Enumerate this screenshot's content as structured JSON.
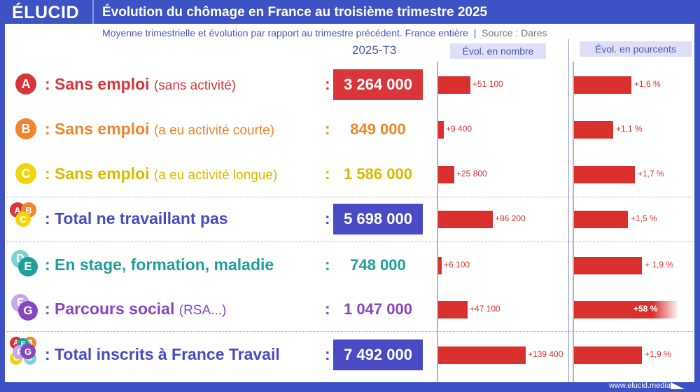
{
  "header": {
    "logo": "ÉLUCID",
    "title": "Évolution du chômage en France au troisième trimestre 2025"
  },
  "subtitle": {
    "text": "Moyenne trimestrielle et évolution par rapport au trimestre précédent. France entière",
    "source": "Source : Dares"
  },
  "columns": {
    "period": "2025-T3",
    "evol_number": "Évol. en nombre",
    "evol_percent": "Évol. en pourcents"
  },
  "colors": {
    "frame": "#3d52c4",
    "bar": "#d9302e"
  },
  "rows": [
    {
      "badges": [
        {
          "letter": "A",
          "color": "#d9363a"
        }
      ],
      "label": ": Sans emploi",
      "sub": "(sans activité)",
      "color": "#d9363a",
      "value": "3 264 000",
      "boxed": true,
      "evol_number": 51100,
      "evol_number_label": "+51 100",
      "evol_percent": 1.6,
      "evol_percent_label": "+1,6 %"
    },
    {
      "badges": [
        {
          "letter": "B",
          "color": "#f0852b"
        }
      ],
      "label": ": Sans emploi",
      "sub": "(a eu activité courte)",
      "color": "#f0852b",
      "value": "849 000",
      "boxed": false,
      "evol_number": 9400,
      "evol_number_label": "+9 400",
      "evol_percent": 1.1,
      "evol_percent_label": "+1,1 %"
    },
    {
      "badges": [
        {
          "letter": "C",
          "color": "#f2d40e"
        }
      ],
      "label": ": Sans emploi",
      "sub": "(a eu activité longue)",
      "color": "#d8bb00",
      "value": "1 586 000",
      "boxed": false,
      "evol_number": 25800,
      "evol_number_label": "+25 800",
      "evol_percent": 1.7,
      "evol_percent_label": "+1,7 %"
    },
    {
      "badges": [
        {
          "letter": "A",
          "color": "#d9363a"
        },
        {
          "letter": "B",
          "color": "#f0852b"
        },
        {
          "letter": "C",
          "color": "#f2d40e"
        }
      ],
      "label": ": Total ne travaillant pas",
      "sub": "",
      "color": "#4a4bc4",
      "value": "5 698 000",
      "boxed": true,
      "evol_number": 86200,
      "evol_number_label": "+86 200",
      "evol_percent": 1.5,
      "evol_percent_label": "+1,5 %"
    },
    {
      "badges": [
        {
          "letter": "D",
          "color": "#7fd3d6"
        },
        {
          "letter": "E",
          "color": "#1f9e9a"
        }
      ],
      "label": ": En stage, formation, maladie",
      "sub": "",
      "color": "#1f9e9a",
      "value": "748 000",
      "boxed": false,
      "evol_number": 6100,
      "evol_number_label": "+6 100",
      "evol_percent": 1.9,
      "evol_percent_label": "+ 1,9 %"
    },
    {
      "badges": [
        {
          "letter": "F",
          "color": "#c6a5ee"
        },
        {
          "letter": "G",
          "color": "#8447c0"
        }
      ],
      "label": ": Parcours social",
      "sub": "(RSA...)",
      "color": "#8447c0",
      "value": "1 047 000",
      "boxed": false,
      "evol_number": 47100,
      "evol_number_label": "+47 100",
      "evol_percent": 58,
      "evol_percent_label": "+58 %"
    },
    {
      "badges": [
        {
          "letter": "A",
          "color": "#d9363a"
        },
        {
          "letter": "B",
          "color": "#f0852b"
        },
        {
          "letter": "C",
          "color": "#f2d40e"
        },
        {
          "letter": "D",
          "color": "#7fd3d6"
        },
        {
          "letter": "E",
          "color": "#1f9e9a"
        },
        {
          "letter": "F",
          "color": "#c6a5ee"
        },
        {
          "letter": "G",
          "color": "#8447c0"
        }
      ],
      "label": ": Total inscrits à France Travail",
      "sub": "",
      "color": "#4a4bc4",
      "value": "7 492 000",
      "boxed": true,
      "evol_number": 139400,
      "evol_number_label": "+139 400",
      "evol_percent": 1.9,
      "evol_percent_label": "+1,9 %"
    }
  ],
  "footer": {
    "url": "www.elucid.media"
  }
}
